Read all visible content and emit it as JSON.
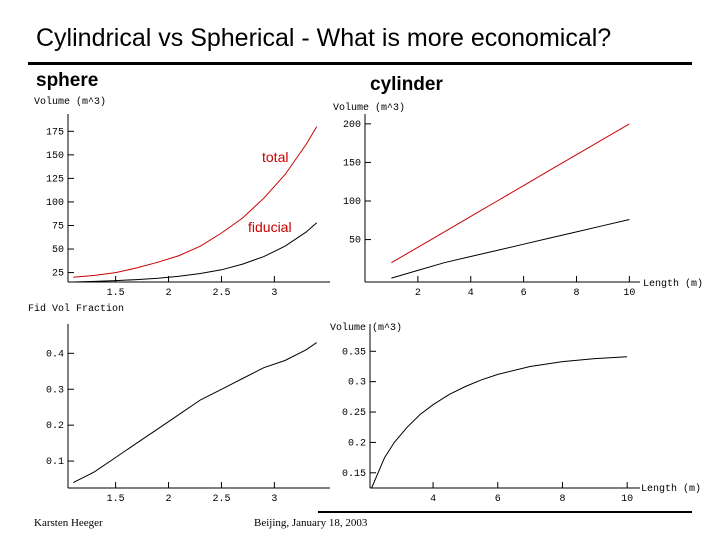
{
  "slide": {
    "title": "Cylindrical vs Spherical - What is more economical?",
    "caption_sphere": "sphere",
    "caption_cylinder": "cylinder",
    "footer_left": "Karsten Heeger",
    "footer_center": "Beijing, January 18, 2003"
  },
  "colors": {
    "total": "#cc0000",
    "fiducial": "#000000"
  },
  "chart_data": [
    {
      "id": "sphere-volume",
      "type": "line",
      "ylabel": "Volume (m^3)",
      "xlabel": "",
      "xlim": [
        1.05,
        3.45
      ],
      "ylim": [
        15,
        187
      ],
      "x_ticks": [
        "1.5",
        "2",
        "2.5",
        "3"
      ],
      "x_tick_values": [
        1.5,
        2,
        2.5,
        3
      ],
      "y_ticks": [
        "25",
        "50",
        "75",
        "100",
        "125",
        "150",
        "175"
      ],
      "y_tick_values": [
        25,
        50,
        75,
        100,
        125,
        150,
        175
      ],
      "annotations": [
        {
          "text": "total",
          "series": "total"
        },
        {
          "text": "fiducial",
          "series": "fiducial"
        }
      ],
      "series": [
        {
          "name": "total",
          "color": "#cc0000",
          "x": [
            1.1,
            1.3,
            1.5,
            1.7,
            1.9,
            2.1,
            2.3,
            2.5,
            2.7,
            2.9,
            3.1,
            3.3,
            3.4
          ],
          "values": [
            20,
            22,
            25,
            30,
            36,
            43,
            53,
            67,
            83,
            104,
            129,
            161,
            180
          ]
        },
        {
          "name": "fiducial",
          "color": "#000000",
          "x": [
            1.1,
            1.3,
            1.5,
            1.7,
            1.9,
            2.1,
            2.3,
            2.5,
            2.7,
            2.9,
            3.1,
            3.3,
            3.4
          ],
          "values": [
            15,
            15.6,
            16.5,
            17.5,
            19,
            21,
            24,
            28,
            34,
            42,
            53,
            68,
            78
          ]
        }
      ]
    },
    {
      "id": "cylinder-volume",
      "type": "line",
      "ylabel": "Volume (m^3)",
      "xlabel": "Length (m)",
      "xlim": [
        0,
        10.1
      ],
      "ylim": [
        -5,
        205
      ],
      "x_ticks": [
        "2",
        "4",
        "6",
        "8",
        "10"
      ],
      "x_tick_values": [
        2,
        4,
        6,
        8,
        10
      ],
      "y_ticks": [
        "50",
        "100",
        "150",
        "200"
      ],
      "y_tick_values": [
        50,
        100,
        150,
        200
      ],
      "series": [
        {
          "name": "total",
          "color": "#cc0000",
          "x": [
            1,
            2,
            3,
            4,
            5,
            6,
            7,
            8,
            9,
            10
          ],
          "values": [
            20,
            40,
            60,
            80,
            100,
            120,
            140,
            160,
            180,
            200
          ]
        },
        {
          "name": "fiducial",
          "color": "#000000",
          "x": [
            1,
            2,
            3,
            4,
            5,
            6,
            7,
            8,
            9,
            10
          ],
          "values": [
            0,
            10,
            20,
            28,
            36,
            44,
            52,
            60,
            68,
            76
          ]
        }
      ]
    },
    {
      "id": "sphere-fraction",
      "type": "line",
      "ylabel": "Fid Vol Fraction",
      "xlabel": "",
      "xlim": [
        1.05,
        3.45
      ],
      "ylim": [
        0.025,
        0.465
      ],
      "x_ticks": [
        "1.5",
        "2",
        "2.5",
        "3"
      ],
      "x_tick_values": [
        1.5,
        2,
        2.5,
        3
      ],
      "y_ticks": [
        "0.1",
        "0.2",
        "0.3",
        "0.4"
      ],
      "y_tick_values": [
        0.1,
        0.2,
        0.3,
        0.4
      ],
      "series": [
        {
          "name": "fraction",
          "color": "#000000",
          "x": [
            1.1,
            1.3,
            1.5,
            1.7,
            1.9,
            2.1,
            2.3,
            2.5,
            2.7,
            2.9,
            3.1,
            3.3,
            3.4
          ],
          "values": [
            0.04,
            0.07,
            0.11,
            0.15,
            0.19,
            0.23,
            0.27,
            0.3,
            0.33,
            0.36,
            0.38,
            0.41,
            0.43
          ]
        }
      ]
    },
    {
      "id": "cylinder-fraction",
      "type": "line",
      "ylabel": "Volume (m^3)",
      "xlabel": "Length (m)",
      "xlim": [
        2.05,
        10.15
      ],
      "ylim": [
        0.125,
        0.385
      ],
      "x_ticks": [
        "4",
        "6",
        "8",
        "10"
      ],
      "x_tick_values": [
        4,
        6,
        8,
        10
      ],
      "y_ticks": [
        "0.15",
        "0.2",
        "0.25",
        "0.3",
        "0.35"
      ],
      "y_tick_values": [
        0.15,
        0.2,
        0.25,
        0.3,
        0.35
      ],
      "series": [
        {
          "name": "fraction",
          "color": "#000000",
          "x": [
            2.1,
            2.3,
            2.5,
            2.8,
            3.2,
            3.6,
            4.0,
            4.5,
            5.0,
            5.5,
            6.0,
            7.0,
            8.0,
            9.0,
            10.0
          ],
          "values": [
            0.125,
            0.15,
            0.175,
            0.2,
            0.225,
            0.246,
            0.262,
            0.279,
            0.292,
            0.303,
            0.312,
            0.325,
            0.333,
            0.338,
            0.341
          ]
        }
      ]
    }
  ]
}
